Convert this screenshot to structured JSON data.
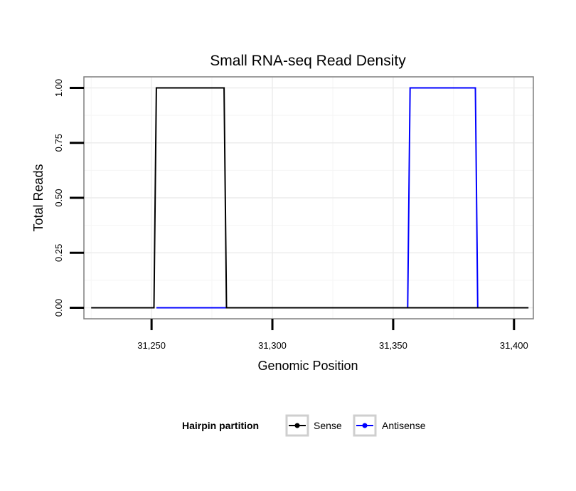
{
  "chart_data": {
    "type": "line",
    "title": "Small RNA-seq Read Density",
    "xlabel": "Genomic Position",
    "ylabel": "Total Reads",
    "xlim": [
      31222,
      31408
    ],
    "ylim": [
      -0.05,
      1.05
    ],
    "x_ticks": [
      31250,
      31300,
      31350,
      31400
    ],
    "x_tick_labels": [
      "31,250",
      "31,300",
      "31,350",
      "31,400"
    ],
    "y_ticks": [
      0,
      0.25,
      0.5,
      0.75,
      1.0
    ],
    "y_tick_labels": [
      "0.00",
      "0.25",
      "0.50",
      "0.75",
      "1.00"
    ],
    "grid": true,
    "legend": {
      "title": "Hairpin partition",
      "position": "bottom"
    },
    "series": [
      {
        "name": "Sense",
        "color": "#000000",
        "x": [
          31225,
          31251,
          31252,
          31280,
          31281,
          31406
        ],
        "y": [
          0,
          0,
          1,
          1,
          0,
          0
        ]
      },
      {
        "name": "Antisense",
        "color": "#0000ff",
        "x": [
          31252,
          31281,
          31356,
          31357,
          31384,
          31385
        ],
        "y": [
          0,
          0,
          0,
          1,
          1,
          0
        ]
      }
    ]
  }
}
